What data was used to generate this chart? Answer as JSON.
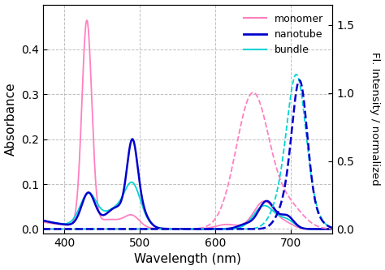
{
  "title": "",
  "xlabel": "Wavelength (nm)",
  "ylabel_left": "Absorbance",
  "ylabel_right": "Fl. Intensity / normalized",
  "xlim": [
    372,
    755
  ],
  "ylim_left": [
    -0.01,
    0.5
  ],
  "ylim_right": [
    -0.033,
    1.65
  ],
  "yticks_left": [
    0.0,
    0.1,
    0.2,
    0.3,
    0.4
  ],
  "yticks_right": [
    0.0,
    0.5,
    1.0,
    1.5
  ],
  "xticks": [
    400,
    500,
    600,
    700
  ],
  "color_monomer": "#ff80c0",
  "color_nanotube": "#0000cc",
  "color_bundle": "#00d4d4",
  "legend_labels": [
    "monomer",
    "nanotube",
    "bundle"
  ],
  "background": "#ffffff",
  "grid_color": "#c0c0c0"
}
